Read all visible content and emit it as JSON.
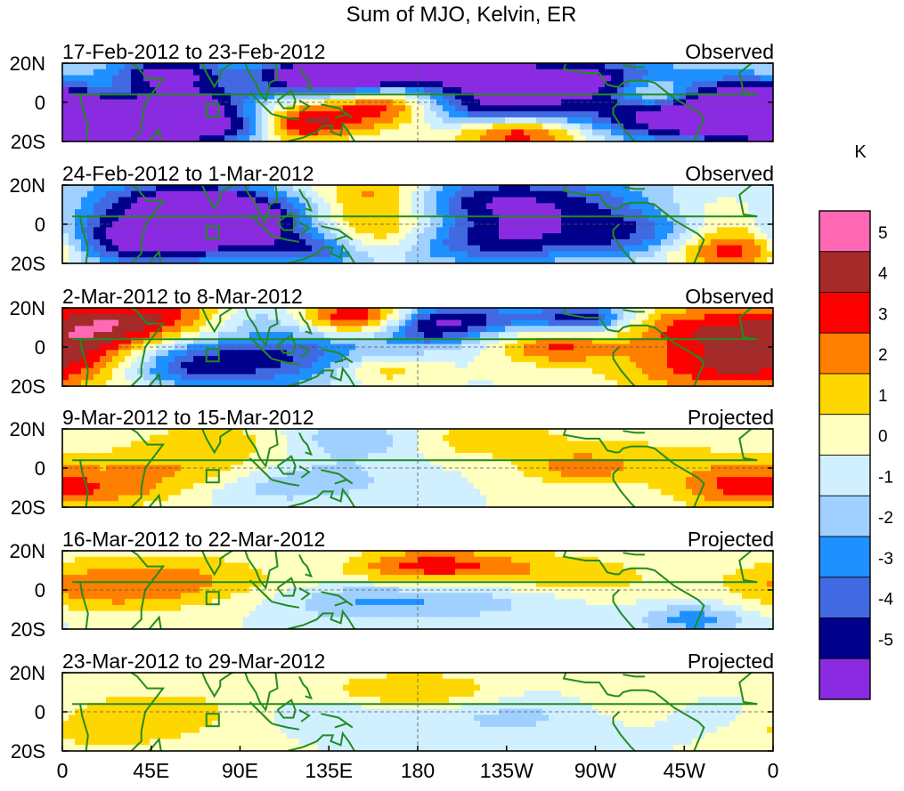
{
  "chart_data": {
    "type": "heatmap",
    "title": "Sum of MJO, Kelvin, ER",
    "colorbar": {
      "unit_label": "K",
      "levels": [
        "5",
        "4",
        "3",
        "2",
        "1",
        "0",
        "-1",
        "-2",
        "-3",
        "-4",
        "-5"
      ],
      "colors": [
        "#ff69b4",
        "#a52a2a",
        "#ff0000",
        "#ff7f00",
        "#ffd700",
        "#ffffc0",
        "#d0f0ff",
        "#a0d0ff",
        "#1e90ff",
        "#4169e1",
        "#00008b",
        "#8a2be2"
      ]
    },
    "x_ticks": [
      "0",
      "45E",
      "90E",
      "135E",
      "180",
      "135W",
      "90W",
      "45W",
      "0"
    ],
    "y_ticks": [
      "20N",
      "0",
      "20S"
    ],
    "lat_range": [
      -20,
      20
    ],
    "lon_range": [
      0,
      360
    ],
    "panels": [
      {
        "period": "17-Feb-2012 to 23-Feb-2012",
        "type": "Observed"
      },
      {
        "period": "24-Feb-2012 to 1-Mar-2012",
        "type": "Observed"
      },
      {
        "period": "2-Mar-2012 to 8-Mar-2012",
        "type": "Observed"
      },
      {
        "period": "9-Mar-2012 to 15-Mar-2012",
        "type": "Projected"
      },
      {
        "period": "16-Mar-2012 to 22-Mar-2012",
        "type": "Projected"
      },
      {
        "period": "23-Mar-2012 to 29-Mar-2012",
        "type": "Projected"
      }
    ],
    "anomalies": [
      [
        [
          15,
          -10,
          -4.5,
          40,
          12
        ],
        [
          5,
          0,
          -4,
          35,
          10
        ],
        [
          45,
          -15,
          -5,
          25,
          8
        ],
        [
          55,
          15,
          -5,
          20,
          6
        ],
        [
          72,
          0,
          -3.5,
          18,
          6
        ],
        [
          90,
          -12,
          -4.5,
          18,
          6
        ],
        [
          115,
          -12,
          4,
          18,
          6
        ],
        [
          120,
          12,
          -4,
          20,
          7
        ],
        [
          150,
          -5,
          4,
          30,
          8
        ],
        [
          150,
          15,
          -5,
          20,
          6
        ],
        [
          170,
          0,
          3,
          18,
          8
        ],
        [
          205,
          15,
          -5.5,
          55,
          9
        ],
        [
          215,
          -5,
          -5,
          45,
          9
        ],
        [
          230,
          -15,
          5.5,
          25,
          6
        ],
        [
          280,
          10,
          -3,
          30,
          8
        ],
        [
          300,
          5,
          4,
          15,
          6
        ],
        [
          300,
          -10,
          -3,
          25,
          8
        ],
        [
          340,
          -5,
          -3,
          30,
          9
        ],
        [
          20,
          5,
          2.5,
          15,
          6
        ],
        [
          60,
          -10,
          2,
          20,
          6
        ]
      ],
      [
        [
          50,
          -5,
          -5.5,
          35,
          12
        ],
        [
          50,
          15,
          -3,
          30,
          8
        ],
        [
          100,
          0,
          -3,
          30,
          10
        ],
        [
          80,
          5,
          -4,
          20,
          8
        ],
        [
          130,
          -12,
          -4,
          20,
          7
        ],
        [
          160,
          15,
          5,
          25,
          9
        ],
        [
          160,
          0,
          4,
          30,
          7
        ],
        [
          150,
          -10,
          3,
          25,
          6
        ],
        [
          215,
          10,
          -5.5,
          60,
          12
        ],
        [
          215,
          -10,
          -3.5,
          45,
          8
        ],
        [
          300,
          -5,
          -3,
          30,
          9
        ],
        [
          340,
          -12,
          5,
          25,
          8
        ],
        [
          330,
          5,
          2,
          25,
          8
        ],
        [
          20,
          -10,
          -2,
          20,
          8
        ]
      ],
      [
        [
          15,
          5,
          3,
          25,
          10
        ],
        [
          55,
          15,
          4,
          40,
          8
        ],
        [
          150,
          15,
          5.5,
          25,
          6
        ],
        [
          110,
          -5,
          -4,
          40,
          12
        ],
        [
          100,
          15,
          -3,
          25,
          6
        ],
        [
          185,
          10,
          -4,
          18,
          7
        ],
        [
          210,
          15,
          -3.5,
          35,
          6
        ],
        [
          265,
          15,
          -4,
          15,
          5
        ],
        [
          250,
          0,
          3,
          20,
          6
        ],
        [
          340,
          -10,
          4,
          40,
          10
        ],
        [
          320,
          10,
          3,
          25,
          8
        ],
        [
          60,
          -10,
          -3,
          25,
          8
        ],
        [
          160,
          -12,
          2.5,
          20,
          6
        ]
      ],
      [
        [
          60,
          0,
          2,
          40,
          8
        ],
        [
          80,
          15,
          1.5,
          30,
          6
        ],
        [
          150,
          15,
          -2,
          30,
          7
        ],
        [
          130,
          -5,
          -1.5,
          30,
          8
        ],
        [
          210,
          15,
          2,
          30,
          7
        ],
        [
          260,
          0,
          2,
          20,
          6
        ],
        [
          345,
          -10,
          3,
          25,
          8
        ],
        [
          30,
          -12,
          1.5,
          25,
          6
        ],
        [
          100,
          -10,
          -1,
          25,
          6
        ],
        [
          300,
          5,
          1.2,
          35,
          10
        ]
      ],
      [
        [
          60,
          5,
          2,
          50,
          10
        ],
        [
          185,
          12,
          3.5,
          35,
          7
        ],
        [
          150,
          -5,
          -2,
          35,
          8
        ],
        [
          220,
          -5,
          -1.5,
          40,
          7
        ],
        [
          260,
          5,
          1.5,
          35,
          10
        ],
        [
          320,
          -15,
          -2.5,
          20,
          6
        ],
        [
          130,
          15,
          -1,
          25,
          6
        ],
        [
          20,
          0,
          1.5,
          30,
          9
        ]
      ],
      [
        [
          60,
          0,
          1.5,
          50,
          10
        ],
        [
          180,
          10,
          2.5,
          35,
          7
        ],
        [
          135,
          0,
          -1.5,
          35,
          8
        ],
        [
          230,
          0,
          -1.5,
          35,
          9
        ],
        [
          290,
          5,
          1,
          30,
          9
        ],
        [
          330,
          0,
          -1,
          25,
          8
        ],
        [
          20,
          -10,
          1.2,
          25,
          8
        ]
      ]
    ]
  }
}
